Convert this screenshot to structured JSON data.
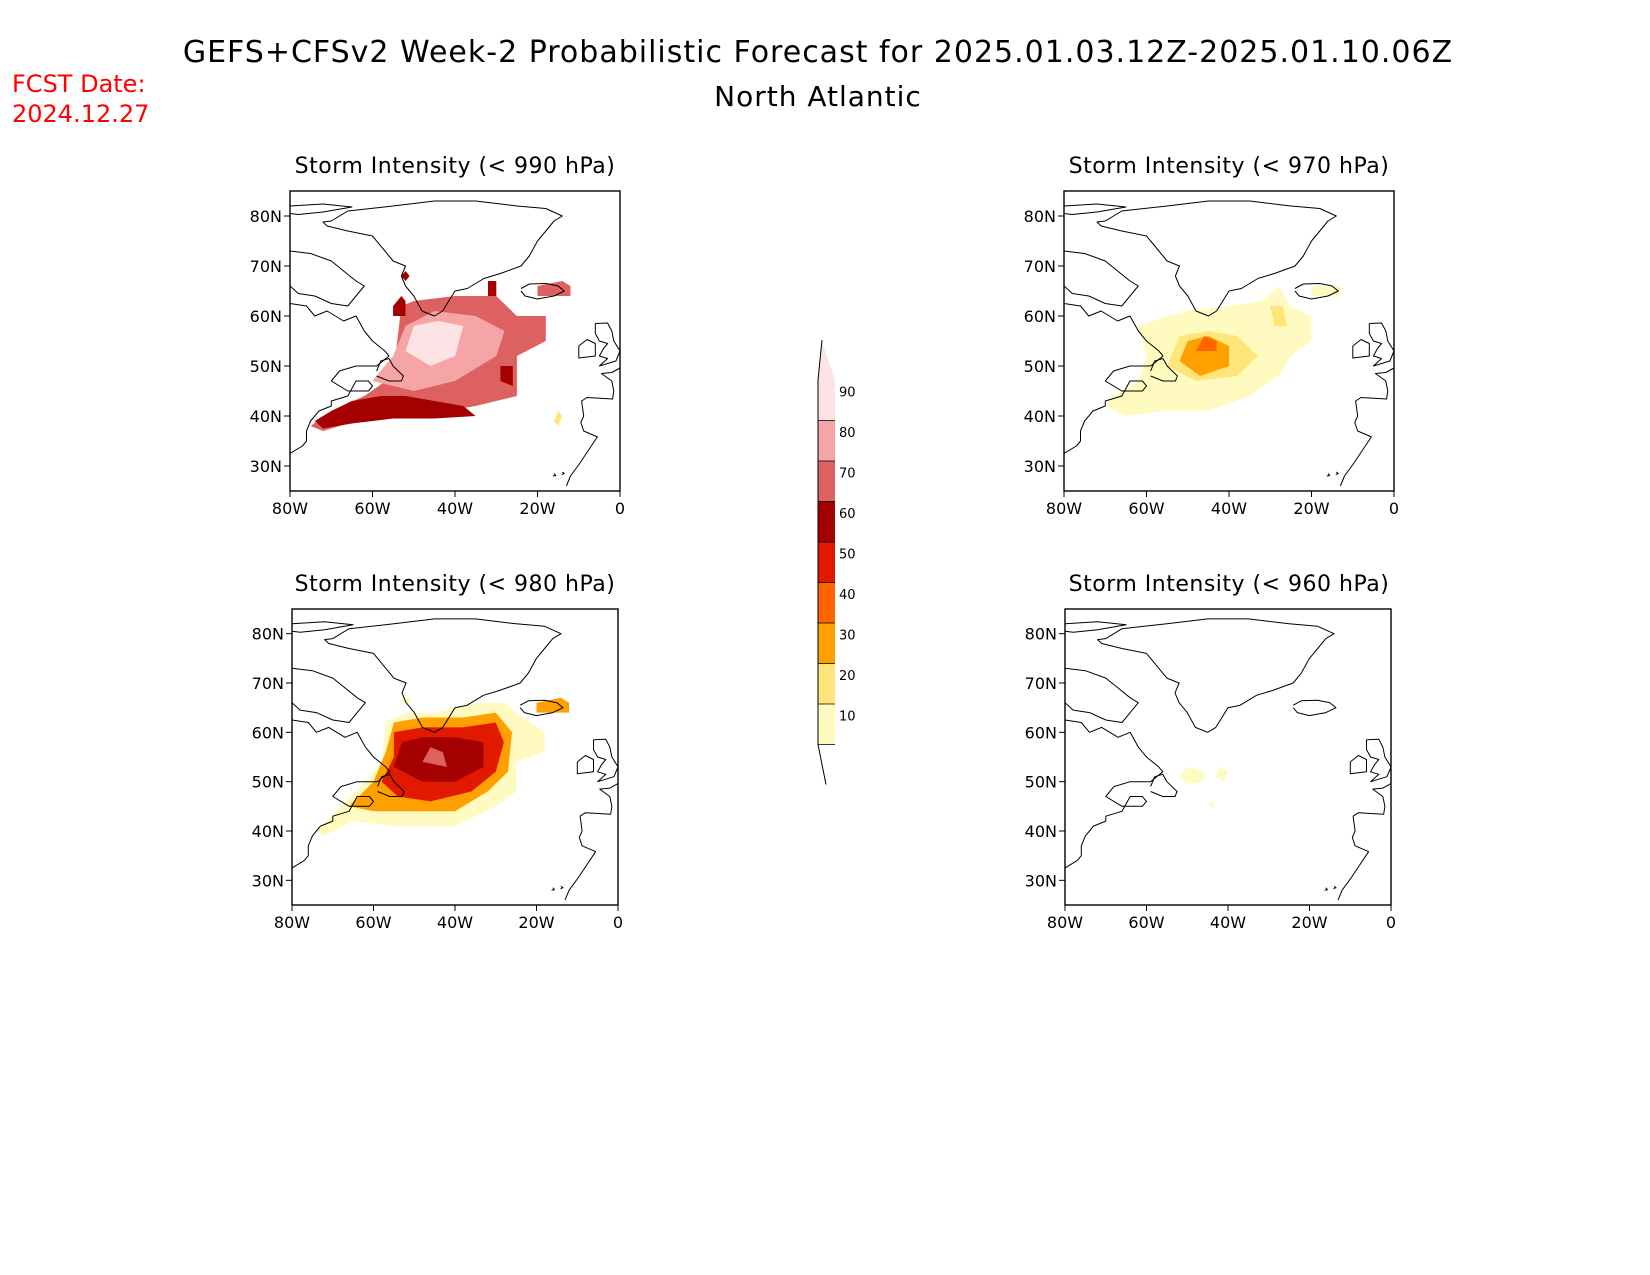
{
  "header": {
    "title": "GEFS+CFSv2 Week-2 Probabilistic Forecast for 2025.01.03.12Z-2025.01.10.06Z",
    "region": "North Atlantic",
    "fcst_label": "FCST Date:",
    "fcst_date": "2024.12.27"
  },
  "map_extent": {
    "lon": [
      -80,
      0
    ],
    "lat": [
      25,
      85
    ]
  },
  "axis_labels": {
    "lat": [
      "80N",
      "70N",
      "60N",
      "50N",
      "40N",
      "30N"
    ],
    "lon": [
      "80W",
      "60W",
      "40W",
      "20W",
      "0"
    ]
  },
  "panels": [
    {
      "title": "Storm Intensity (< 990 hPa)",
      "regions": [
        {
          "level": 1,
          "pts": [
            [
              -75,
              38
            ],
            [
              -70,
              41
            ],
            [
              -62,
              44
            ],
            [
              -55,
              48
            ],
            [
              -53,
              62
            ],
            [
              -50,
              63
            ],
            [
              -40,
              64
            ],
            [
              -30,
              64
            ],
            [
              -25,
              60
            ],
            [
              -18,
              60
            ],
            [
              -18,
              55
            ],
            [
              -25,
              52
            ],
            [
              -25,
              44
            ],
            [
              -35,
              42
            ],
            [
              -50,
              40
            ],
            [
              -60,
              40
            ],
            [
              -72,
              37
            ]
          ]
        },
        {
          "level": 7,
          "pts": [
            [
              -75,
              38
            ],
            [
              -70,
              41
            ],
            [
              -62,
              44
            ],
            [
              -55,
              48
            ],
            [
              -53,
              62
            ],
            [
              -50,
              63
            ],
            [
              -40,
              64
            ],
            [
              -30,
              64
            ],
            [
              -25,
              60
            ],
            [
              -18,
              60
            ],
            [
              -18,
              55
            ],
            [
              -25,
              52
            ],
            [
              -25,
              44
            ],
            [
              -35,
              42
            ],
            [
              -50,
              40
            ],
            [
              -60,
              40
            ],
            [
              -72,
              37
            ]
          ]
        },
        {
          "level": 8,
          "pts": [
            [
              -60,
              47
            ],
            [
              -55,
              52
            ],
            [
              -52,
              58
            ],
            [
              -45,
              61
            ],
            [
              -35,
              60
            ],
            [
              -28,
              57
            ],
            [
              -30,
              52
            ],
            [
              -40,
              47
            ],
            [
              -50,
              45
            ]
          ]
        },
        {
          "level": 9,
          "pts": [
            [
              -52,
              53
            ],
            [
              -50,
              58
            ],
            [
              -44,
              59
            ],
            [
              -38,
              58
            ],
            [
              -40,
              52
            ],
            [
              -46,
              50
            ]
          ]
        },
        {
          "level": 6,
          "pts": [
            [
              -74,
              39
            ],
            [
              -70,
              41
            ],
            [
              -65,
              43
            ],
            [
              -58,
              44
            ],
            [
              -52,
              44
            ],
            [
              -45,
              43
            ],
            [
              -38,
              42
            ],
            [
              -35,
              40
            ],
            [
              -45,
              39.5
            ],
            [
              -55,
              39.5
            ],
            [
              -65,
              38.5
            ],
            [
              -72,
              37.5
            ]
          ]
        },
        {
          "level": 6,
          "pts": [
            [
              -29,
              47
            ],
            [
              -26,
              46
            ],
            [
              -26,
              50
            ],
            [
              -29,
              50
            ]
          ]
        },
        {
          "level": 7,
          "pts": [
            [
              -14,
              67
            ],
            [
              -12,
              66
            ],
            [
              -12,
              64
            ],
            [
              -20,
              64
            ],
            [
              -20,
              66
            ]
          ]
        },
        {
          "level": 6,
          "pts": [
            [
              -53,
              64
            ],
            [
              -52,
              63
            ],
            [
              -52,
              60
            ],
            [
              -55,
              60
            ],
            [
              -55,
              62
            ]
          ]
        },
        {
          "level": 6,
          "pts": [
            [
              -52,
              69
            ],
            [
              -51,
              68
            ],
            [
              -52,
              67
            ],
            [
              -53,
              68
            ]
          ]
        },
        {
          "level": 6,
          "pts": [
            [
              -32,
              67
            ],
            [
              -30,
              67
            ],
            [
              -30,
              64
            ],
            [
              -32,
              64
            ]
          ]
        },
        {
          "level": 2,
          "pts": [
            [
              -15,
              41
            ],
            [
              -14,
              40
            ],
            [
              -15,
              38
            ],
            [
              -16,
              39
            ]
          ]
        }
      ]
    },
    {
      "title": "Storm Intensity (< 970 hPa)",
      "regions": [
        {
          "level": 1,
          "pts": [
            [
              -68,
              44
            ],
            [
              -62,
              47
            ],
            [
              -60,
              52
            ],
            [
              -62,
              58
            ],
            [
              -55,
              60
            ],
            [
              -50,
              61
            ],
            [
              -40,
              62
            ],
            [
              -32,
              63
            ],
            [
              -28,
              66
            ],
            [
              -25,
              62
            ],
            [
              -20,
              60
            ],
            [
              -20,
              55
            ],
            [
              -25,
              52
            ],
            [
              -28,
              48
            ],
            [
              -35,
              44
            ],
            [
              -45,
              41
            ],
            [
              -55,
              41
            ],
            [
              -65,
              40
            ],
            [
              -70,
              42
            ]
          ]
        },
        {
          "level": 2,
          "pts": [
            [
              -55,
              50
            ],
            [
              -52,
              56
            ],
            [
              -45,
              57
            ],
            [
              -38,
              56
            ],
            [
              -33,
              52
            ],
            [
              -38,
              48
            ],
            [
              -48,
              47
            ]
          ]
        },
        {
          "level": 3,
          "pts": [
            [
              -52,
              51
            ],
            [
              -50,
              55
            ],
            [
              -45,
              56
            ],
            [
              -40,
              54
            ],
            [
              -40,
              50
            ],
            [
              -47,
              48
            ]
          ]
        },
        {
          "level": 4,
          "pts": [
            [
              -48,
              53
            ],
            [
              -46,
              56
            ],
            [
              -43,
              55
            ],
            [
              -43,
              53
            ]
          ]
        },
        {
          "level": 2,
          "pts": [
            [
              -30,
              62
            ],
            [
              -27,
              62
            ],
            [
              -26,
              58
            ],
            [
              -29,
              58
            ]
          ]
        },
        {
          "level": 1,
          "pts": [
            [
              -20,
              66
            ],
            [
              -13,
              66
            ],
            [
              -13,
              64
            ],
            [
              -20,
              64
            ]
          ]
        }
      ]
    },
    {
      "title": "Storm Intensity (< 980 hPa)",
      "regions": [
        {
          "level": 1,
          "pts": [
            [
              -74,
              40
            ],
            [
              -68,
              45
            ],
            [
              -62,
              50
            ],
            [
              -58,
              54
            ],
            [
              -57,
              62
            ],
            [
              -52,
              64
            ],
            [
              -45,
              64
            ],
            [
              -35,
              66
            ],
            [
              -28,
              66
            ],
            [
              -25,
              64
            ],
            [
              -18,
              60
            ],
            [
              -18,
              56
            ],
            [
              -25,
              54
            ],
            [
              -25,
              48
            ],
            [
              -30,
              45
            ],
            [
              -40,
              41
            ],
            [
              -55,
              41
            ],
            [
              -65,
              42
            ],
            [
              -72,
              39
            ]
          ]
        },
        {
          "level": 3,
          "pts": [
            [
              -66,
              45
            ],
            [
              -60,
              50
            ],
            [
              -57,
              56
            ],
            [
              -55,
              62
            ],
            [
              -48,
              63
            ],
            [
              -38,
              63
            ],
            [
              -30,
              64
            ],
            [
              -26,
              60
            ],
            [
              -27,
              52
            ],
            [
              -32,
              48
            ],
            [
              -40,
              44
            ],
            [
              -52,
              44
            ],
            [
              -60,
              44
            ]
          ]
        },
        {
          "level": 5,
          "pts": [
            [
              -58,
              50
            ],
            [
              -55,
              55
            ],
            [
              -55,
              60
            ],
            [
              -48,
              61
            ],
            [
              -38,
              61
            ],
            [
              -30,
              62
            ],
            [
              -28,
              58
            ],
            [
              -30,
              52
            ],
            [
              -36,
              48
            ],
            [
              -46,
              46
            ],
            [
              -54,
              47
            ]
          ]
        },
        {
          "level": 6,
          "pts": [
            [
              -55,
              53
            ],
            [
              -53,
              58
            ],
            [
              -48,
              59
            ],
            [
              -40,
              59
            ],
            [
              -33,
              58
            ],
            [
              -33,
              53
            ],
            [
              -40,
              50
            ],
            [
              -48,
              50
            ]
          ]
        },
        {
          "level": 7,
          "pts": [
            [
              -48,
              54
            ],
            [
              -46,
              57
            ],
            [
              -43,
              56
            ],
            [
              -42,
              53
            ]
          ]
        },
        {
          "level": 3,
          "pts": [
            [
              -14,
              67
            ],
            [
              -12,
              66
            ],
            [
              -12,
              64
            ],
            [
              -20,
              64
            ],
            [
              -20,
              66
            ]
          ]
        },
        {
          "level": 1,
          "pts": [
            [
              -53,
              67
            ],
            [
              -51,
              67
            ],
            [
              -51,
              66
            ],
            [
              -53,
              66
            ]
          ]
        }
      ]
    },
    {
      "title": "Storm Intensity (< 960 hPa)",
      "regions": [
        {
          "level": 1,
          "pts": [
            [
              -52,
              51
            ],
            [
              -50,
              53
            ],
            [
              -46,
              52
            ],
            [
              -46,
              50
            ],
            [
              -50,
              49.5
            ]
          ]
        },
        {
          "level": 1,
          "pts": [
            [
              -42,
              53
            ],
            [
              -40,
              52
            ],
            [
              -41,
              50
            ],
            [
              -43,
              51
            ]
          ]
        },
        {
          "level": 1,
          "pts": [
            [
              -44,
              46
            ],
            [
              -43,
              45
            ],
            [
              -44,
              44.5
            ],
            [
              -45,
              45.5
            ]
          ]
        }
      ]
    }
  ],
  "colorbar": {
    "levels": [
      10,
      20,
      30,
      40,
      50,
      60,
      70,
      80,
      90
    ],
    "colors": [
      "#fffbc0",
      "#ffe57a",
      "#ffa000",
      "#ff6400",
      "#e11900",
      "#a50000",
      "#dd6161",
      "#f5a5a5",
      "#fde2e6"
    ]
  }
}
